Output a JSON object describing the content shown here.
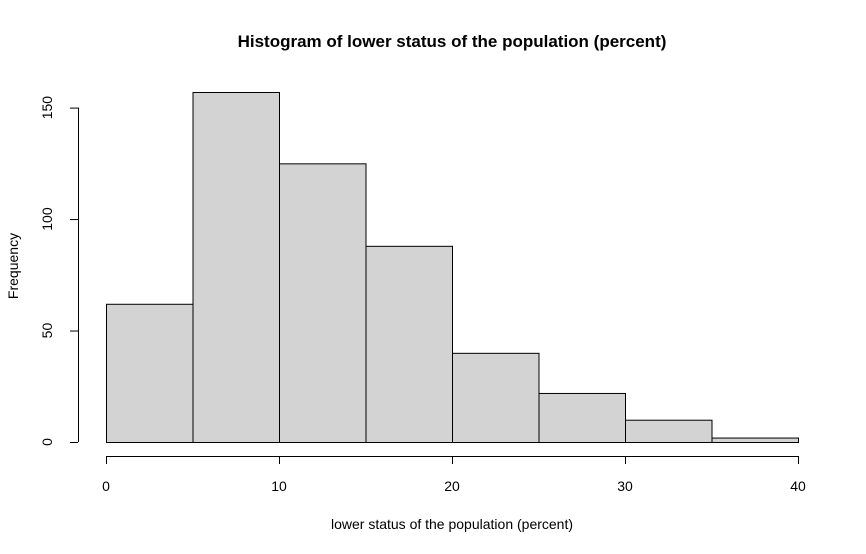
{
  "chart_data": {
    "type": "bar",
    "title": "Histogram of lower status of the population (percent)",
    "xlabel": "lower status of the population (percent)",
    "ylabel": "Frequency",
    "bin_edges": [
      0,
      5,
      10,
      15,
      20,
      25,
      30,
      35,
      40
    ],
    "values": [
      62,
      157,
      125,
      88,
      40,
      22,
      10,
      2
    ],
    "xlim": [
      0,
      40
    ],
    "ylim": [
      0,
      157
    ],
    "x_ticks": [
      0,
      10,
      20,
      30,
      40
    ],
    "y_ticks": [
      0,
      50,
      100,
      150
    ],
    "bar_fill": "#d3d3d3",
    "bar_stroke": "#000000",
    "grid": false
  }
}
